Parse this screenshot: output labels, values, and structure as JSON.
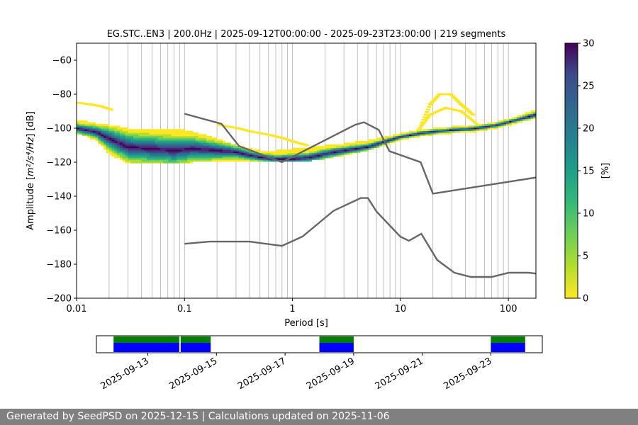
{
  "chart_data": {
    "type": "heatmap",
    "title": "EG.STC..EN3 | 200.0Hz | 2025-09-12T00:00:00 - 2025-09-23T23:00:00 | 219 segments",
    "xlabel": "Period [s]",
    "ylabel_prefix": "Amplitude [",
    "ylabel_unit": "m²/s⁴/Hz",
    "ylabel_suffix": "] [dB]",
    "x_scale": "log",
    "xlim": [
      0.01,
      180
    ],
    "ylim": [
      -200,
      -50
    ],
    "x_ticks": [
      0.01,
      0.1,
      1,
      10,
      100
    ],
    "x_tick_labels": [
      "0.01",
      "0.1",
      "1",
      "10",
      "100"
    ],
    "y_ticks": [
      -200,
      -180,
      -160,
      -140,
      -120,
      -100,
      -80,
      -60
    ],
    "y_tick_labels": [
      "−200",
      "−180",
      "−160",
      "−140",
      "−120",
      "−100",
      "−80",
      "−60"
    ],
    "grid": "vertical-log",
    "colorbar": {
      "label": "[%]",
      "range": [
        0,
        30
      ],
      "ticks": [
        0,
        5,
        10,
        15,
        20,
        25,
        30
      ],
      "tick_labels": [
        "0",
        "5",
        "10",
        "15",
        "20",
        "25",
        "30"
      ],
      "colormap": "viridis_r"
    },
    "mode_curve": {
      "x": [
        0.01,
        0.015,
        0.02,
        0.03,
        0.05,
        0.08,
        0.12,
        0.2,
        0.3,
        0.5,
        0.7,
        1,
        1.5,
        2,
        3,
        5,
        7,
        10,
        15,
        20,
        30,
        50,
        80,
        120,
        180
      ],
      "y": [
        -100,
        -102,
        -106,
        -111,
        -112,
        -113,
        -112,
        -113,
        -114,
        -117,
        -118,
        -118,
        -117,
        -115,
        -113,
        -111,
        -108,
        -105,
        -103,
        -102,
        -101,
        -100,
        -98,
        -95,
        -92
      ]
    },
    "spread_curve": {
      "x": [
        0.01,
        0.015,
        0.02,
        0.03,
        0.05,
        0.08,
        0.12,
        0.2,
        0.3,
        0.5,
        0.7,
        1,
        1.5,
        2,
        3,
        5,
        7,
        10,
        15,
        20,
        30,
        50,
        80,
        120,
        180
      ],
      "upper": [
        -96,
        -98,
        -99,
        -101,
        -101,
        -101,
        -103,
        -107,
        -111,
        -114,
        -114,
        -113,
        -112,
        -111,
        -110,
        -108,
        -106,
        -104,
        -102,
        -101,
        -100,
        -99,
        -97,
        -94,
        -90
      ],
      "lower": [
        -102,
        -106,
        -114,
        -120,
        -120,
        -120,
        -119,
        -119,
        -119,
        -119,
        -119,
        -119,
        -118,
        -117,
        -115,
        -112,
        -109,
        -106,
        -104,
        -103,
        -102,
        -101,
        -99,
        -96,
        -93
      ]
    },
    "outliers": [
      {
        "x": [
          0.01,
          0.013,
          0.016,
          0.02
        ],
        "y": [
          -85,
          -86,
          -87,
          -89
        ]
      },
      {
        "x": [
          0.2,
          0.3,
          0.4,
          0.6,
          0.8,
          1,
          1.3
        ],
        "y": [
          -98,
          -100,
          -102,
          -104,
          -106,
          -108,
          -110
        ]
      },
      {
        "x": [
          15,
          18,
          22,
          28,
          35,
          45
        ],
        "y": [
          -98,
          -86,
          -80,
          -80,
          -86,
          -92
        ]
      },
      {
        "x": [
          14,
          18,
          25,
          35,
          50
        ],
        "y": [
          -101,
          -92,
          -88,
          -90,
          -98
        ]
      }
    ],
    "nhnm": {
      "x": [
        0.1,
        0.22,
        0.32,
        0.8,
        3.8,
        4.6,
        6.3,
        7.9,
        15.4,
        20,
        180
      ],
      "y": [
        -91.5,
        -97.4,
        -110.5,
        -120,
        -98,
        -96.5,
        -101,
        -113.5,
        -120,
        -138.5,
        -129
      ]
    },
    "nlnm": {
      "x": [
        0.1,
        0.17,
        0.4,
        0.8,
        1.24,
        2.4,
        4.3,
        5,
        6,
        10,
        12,
        15.6,
        21.9,
        31.6,
        45,
        70,
        101,
        154,
        180
      ],
      "y": [
        -168,
        -166.7,
        -166.7,
        -169.2,
        -163.7,
        -148.6,
        -141.1,
        -141.1,
        -149,
        -163.8,
        -166.2,
        -162.1,
        -177.5,
        -185,
        -187.5,
        -187.5,
        -185,
        -185,
        -185.5
      ]
    },
    "availability": {
      "date_ticks": [
        "2025-09-13",
        "2025-09-15",
        "2025-09-17",
        "2025-09-19",
        "2025-09-21",
        "2025-09-23"
      ],
      "range_start": "2025-09-11T12:00",
      "range_end": "2025-09-24T12:00",
      "segments": [
        {
          "start": "2025-09-12T00:00",
          "end": "2025-09-13T22:00"
        },
        {
          "start": "2025-09-13T23:00",
          "end": "2025-09-14T20:00"
        },
        {
          "start": "2025-09-18T00:00",
          "end": "2025-09-19T00:00"
        },
        {
          "start": "2025-09-23T00:00",
          "end": "2025-09-24T00:00"
        }
      ],
      "colors": {
        "coverage": "#008000",
        "segments": "#0000ff"
      }
    },
    "colors": {
      "model_lines": "#666666",
      "grid": "#b0b0b0"
    }
  },
  "footer": {
    "text": "Generated by SeedPSD on 2025-12-15 | Calculations updated on 2025-11-06"
  }
}
